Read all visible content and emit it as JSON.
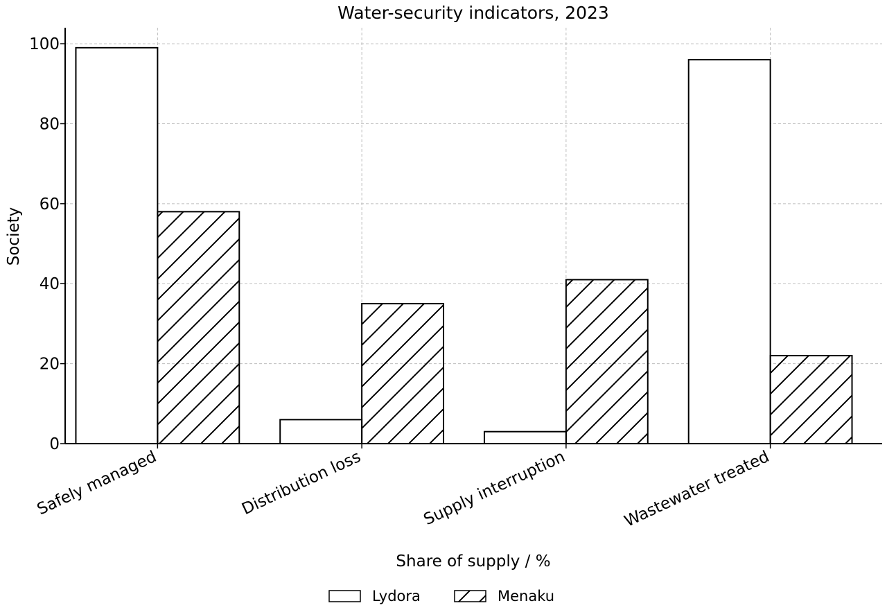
{
  "chart_data": {
    "type": "bar",
    "title": "Water-security indicators, 2023",
    "xlabel": "Share of supply / %",
    "ylabel": "Society",
    "categories": [
      "Safely managed",
      "Distribution loss",
      "Supply interruption",
      "Wastewater treated"
    ],
    "series": [
      {
        "name": "Lydora",
        "values": [
          99,
          6,
          3,
          96
        ],
        "fill": "#ffffff",
        "pattern": "none"
      },
      {
        "name": "Menaku",
        "values": [
          58,
          35,
          41,
          22
        ],
        "fill": "#ffffff",
        "pattern": "diagonal-hatch"
      }
    ],
    "ylim": [
      0,
      104
    ],
    "yticks": [
      0,
      20,
      40,
      60,
      80,
      100
    ],
    "grid": true,
    "legend_position": "bottom-center",
    "colors": {
      "bar_edge": "#000000",
      "grid": "#bdbdbd"
    }
  }
}
